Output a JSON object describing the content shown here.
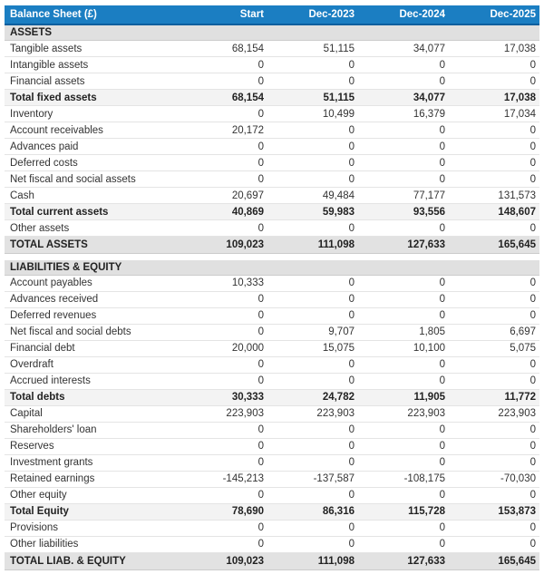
{
  "colors": {
    "header_bg": "#1b7ec2",
    "header_border": "#0d5f9e",
    "section_bg": "#e0e0e0",
    "subtotal_bg": "#f3f3f3",
    "grandtotal_bg": "#e2e2e2"
  },
  "table": {
    "title": "Balance Sheet (£)",
    "columns": [
      "Start",
      "Dec-2023",
      "Dec-2024",
      "Dec-2025"
    ],
    "rows": [
      {
        "type": "section",
        "label": "ASSETS"
      },
      {
        "type": "data",
        "label": "Tangible assets",
        "values": [
          "68,154",
          "51,115",
          "34,077",
          "17,038"
        ]
      },
      {
        "type": "data",
        "label": "Intangible assets",
        "values": [
          "0",
          "0",
          "0",
          "0"
        ]
      },
      {
        "type": "data",
        "label": "Financial assets",
        "values": [
          "0",
          "0",
          "0",
          "0"
        ]
      },
      {
        "type": "subtotal",
        "label": "Total fixed assets",
        "values": [
          "68,154",
          "51,115",
          "34,077",
          "17,038"
        ]
      },
      {
        "type": "data",
        "label": "Inventory",
        "values": [
          "0",
          "10,499",
          "16,379",
          "17,034"
        ]
      },
      {
        "type": "data",
        "label": "Account receivables",
        "values": [
          "20,172",
          "0",
          "0",
          "0"
        ]
      },
      {
        "type": "data",
        "label": "Advances paid",
        "values": [
          "0",
          "0",
          "0",
          "0"
        ]
      },
      {
        "type": "data",
        "label": "Deferred costs",
        "values": [
          "0",
          "0",
          "0",
          "0"
        ]
      },
      {
        "type": "data",
        "label": "Net fiscal and social assets",
        "values": [
          "0",
          "0",
          "0",
          "0"
        ]
      },
      {
        "type": "data",
        "label": "Cash",
        "values": [
          "20,697",
          "49,484",
          "77,177",
          "131,573"
        ]
      },
      {
        "type": "subtotal",
        "label": "Total current assets",
        "values": [
          "40,869",
          "59,983",
          "93,556",
          "148,607"
        ]
      },
      {
        "type": "data",
        "label": "Other assets",
        "values": [
          "0",
          "0",
          "0",
          "0"
        ]
      },
      {
        "type": "grandtotal",
        "label": "TOTAL ASSETS",
        "values": [
          "109,023",
          "111,098",
          "127,633",
          "165,645"
        ]
      },
      {
        "type": "spacer"
      },
      {
        "type": "section",
        "label": "LIABILITIES & EQUITY"
      },
      {
        "type": "data",
        "label": "Account payables",
        "values": [
          "10,333",
          "0",
          "0",
          "0"
        ]
      },
      {
        "type": "data",
        "label": "Advances received",
        "values": [
          "0",
          "0",
          "0",
          "0"
        ]
      },
      {
        "type": "data",
        "label": "Deferred revenues",
        "values": [
          "0",
          "0",
          "0",
          "0"
        ]
      },
      {
        "type": "data",
        "label": "Net fiscal and social debts",
        "values": [
          "0",
          "9,707",
          "1,805",
          "6,697"
        ]
      },
      {
        "type": "data",
        "label": "Financial debt",
        "values": [
          "20,000",
          "15,075",
          "10,100",
          "5,075"
        ]
      },
      {
        "type": "data",
        "label": "Overdraft",
        "values": [
          "0",
          "0",
          "0",
          "0"
        ]
      },
      {
        "type": "data",
        "label": "Accrued interests",
        "values": [
          "0",
          "0",
          "0",
          "0"
        ]
      },
      {
        "type": "subtotal",
        "label": "Total debts",
        "values": [
          "30,333",
          "24,782",
          "11,905",
          "11,772"
        ]
      },
      {
        "type": "data",
        "label": "Capital",
        "values": [
          "223,903",
          "223,903",
          "223,903",
          "223,903"
        ]
      },
      {
        "type": "data",
        "label": "Shareholders' loan",
        "values": [
          "0",
          "0",
          "0",
          "0"
        ]
      },
      {
        "type": "data",
        "label": "Reserves",
        "values": [
          "0",
          "0",
          "0",
          "0"
        ]
      },
      {
        "type": "data",
        "label": "Investment grants",
        "values": [
          "0",
          "0",
          "0",
          "0"
        ]
      },
      {
        "type": "data",
        "label": "Retained earnings",
        "values": [
          "-145,213",
          "-137,587",
          "-108,175",
          "-70,030"
        ]
      },
      {
        "type": "data",
        "label": "Other equity",
        "values": [
          "0",
          "0",
          "0",
          "0"
        ]
      },
      {
        "type": "subtotal",
        "label": "Total Equity",
        "values": [
          "78,690",
          "86,316",
          "115,728",
          "153,873"
        ]
      },
      {
        "type": "data",
        "label": "Provisions",
        "values": [
          "0",
          "0",
          "0",
          "0"
        ]
      },
      {
        "type": "data",
        "label": "Other liabilities",
        "values": [
          "0",
          "0",
          "0",
          "0"
        ]
      },
      {
        "type": "grandtotal",
        "label": "TOTAL LIAB. & EQUITY",
        "values": [
          "109,023",
          "111,098",
          "127,633",
          "165,645"
        ]
      }
    ]
  }
}
